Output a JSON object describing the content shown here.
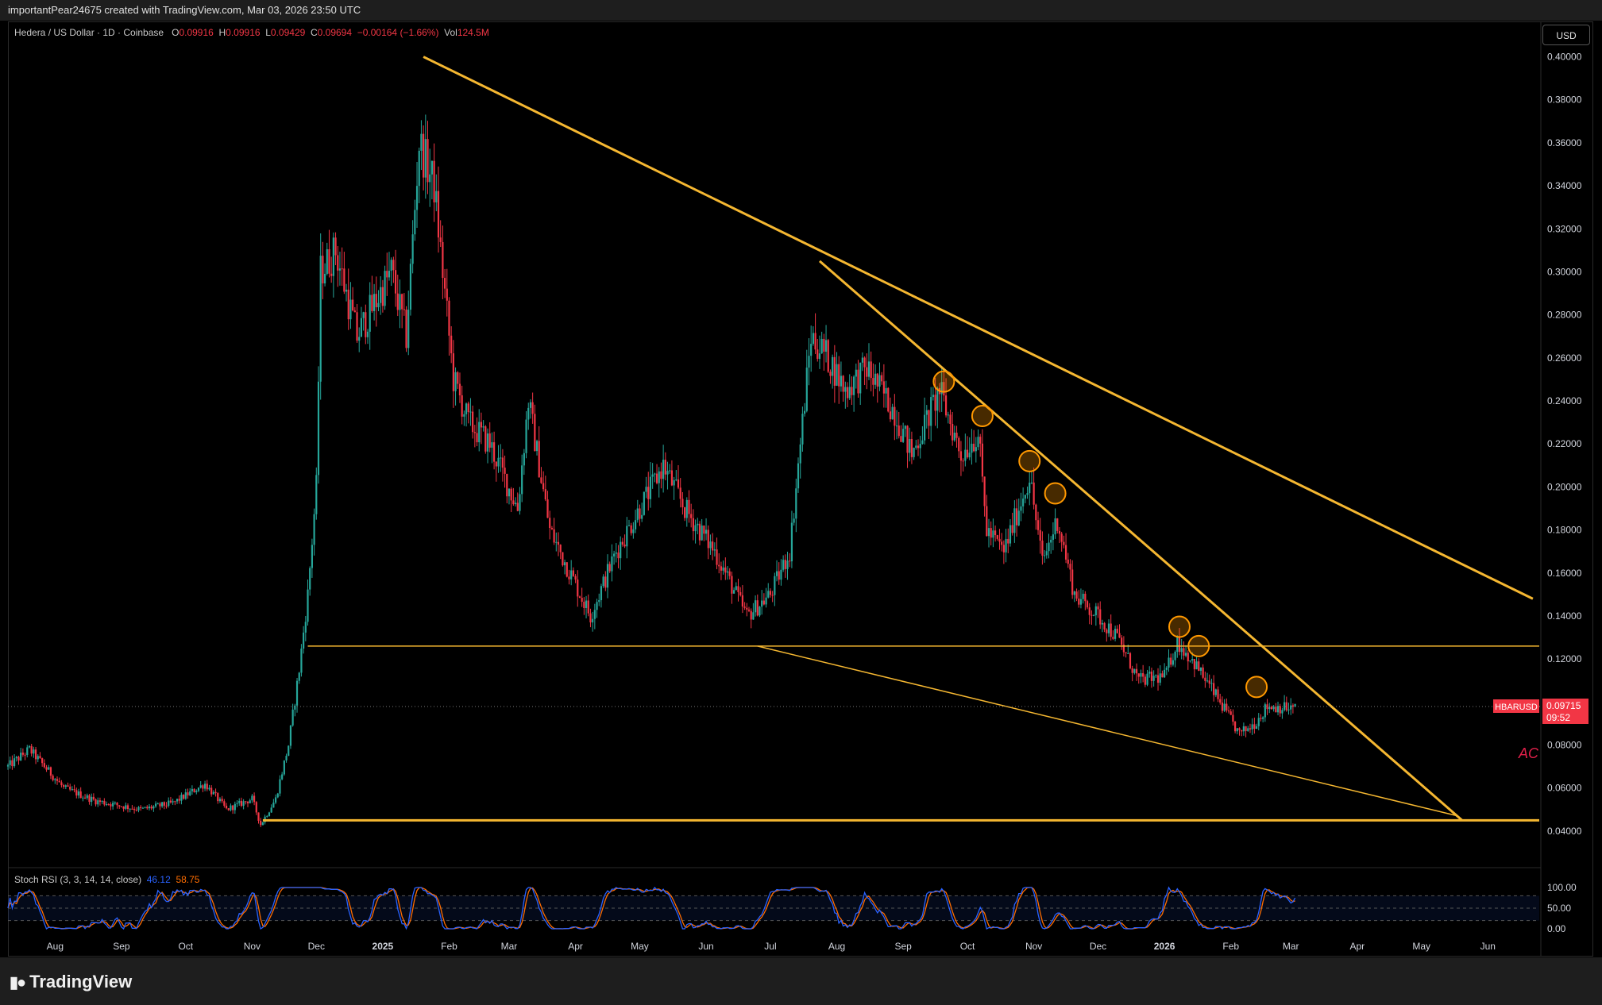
{
  "header": {
    "credit": "importantPear24675 created with TradingView.com, Mar 03, 2026 23:50 UTC"
  },
  "symbol": {
    "name": "Hedera / US Dollar · 1D · Coinbase",
    "open_label": "O",
    "open": "0.09916",
    "high_label": "H",
    "high": "0.09916",
    "low_label": "L",
    "low": "0.09429",
    "close_label": "C",
    "close": "0.09694",
    "change": "−0.00164 (−1.66%)",
    "vol_label": "Vol",
    "vol": "124.5M"
  },
  "currency_button": "USD",
  "price_tag": {
    "symbol": "HBARUSD",
    "price": "0.09715",
    "countdown": "09:52"
  },
  "watermark": "AC",
  "indicator": {
    "name": "Stoch RSI (3, 3, 14, 14, close)",
    "k": "46.12",
    "d": "58.75"
  },
  "footer": {
    "brand": "TradingView"
  },
  "colors": {
    "up": "#26a69a",
    "down": "#f23645",
    "trendline": "#f5b731",
    "stoch_k": "#2962ff",
    "stoch_d": "#ff6d00",
    "highlight": "#ff9800"
  },
  "chart_data": {
    "type": "candlestick",
    "y_ticks": [
      "0.40000",
      "0.38000",
      "0.36000",
      "0.34000",
      "0.32000",
      "0.30000",
      "0.28000",
      "0.26000",
      "0.24000",
      "0.22000",
      "0.20000",
      "0.18000",
      "0.16000",
      "0.14000",
      "0.12000",
      "0.10000",
      "0.08000",
      "0.06000",
      "0.04000"
    ],
    "ylim": [
      0.037,
      0.405
    ],
    "x_ticks": [
      "Aug",
      "Sep",
      "Oct",
      "Nov",
      "Dec",
      "2025",
      "Feb",
      "Mar",
      "Apr",
      "May",
      "Jun",
      "Jul",
      "Aug",
      "Sep",
      "Oct",
      "Nov",
      "Dec",
      "2026",
      "Feb",
      "Mar",
      "Apr",
      "May",
      "Jun"
    ],
    "x_range": [
      "2024-07-10",
      "2026-06-25"
    ],
    "stoch_ticks": [
      "100.00",
      "50.00",
      "0.00"
    ],
    "price_path": [
      [
        "2024-07-10",
        0.07
      ],
      [
        "2024-07-20",
        0.078
      ],
      [
        "2024-08-05",
        0.06
      ],
      [
        "2024-08-20",
        0.054
      ],
      [
        "2024-09-10",
        0.05
      ],
      [
        "2024-09-25",
        0.053
      ],
      [
        "2024-10-10",
        0.062
      ],
      [
        "2024-10-20",
        0.05
      ],
      [
        "2024-11-01",
        0.055
      ],
      [
        "2024-11-05",
        0.043
      ],
      [
        "2024-11-12",
        0.055
      ],
      [
        "2024-11-18",
        0.08
      ],
      [
        "2024-11-23",
        0.115
      ],
      [
        "2024-11-27",
        0.15
      ],
      [
        "2024-12-01",
        0.2
      ],
      [
        "2024-12-03",
        0.3
      ],
      [
        "2024-12-10",
        0.31
      ],
      [
        "2024-12-20",
        0.27
      ],
      [
        "2025-01-05",
        0.3
      ],
      [
        "2025-01-12",
        0.27
      ],
      [
        "2025-01-18",
        0.36
      ],
      [
        "2025-01-25",
        0.34
      ],
      [
        "2025-02-03",
        0.25
      ],
      [
        "2025-02-10",
        0.23
      ],
      [
        "2025-02-20",
        0.22
      ],
      [
        "2025-03-05",
        0.19
      ],
      [
        "2025-03-10",
        0.24
      ],
      [
        "2025-03-20",
        0.18
      ],
      [
        "2025-04-08",
        0.14
      ],
      [
        "2025-04-20",
        0.17
      ],
      [
        "2025-05-12",
        0.21
      ],
      [
        "2025-05-22",
        0.19
      ],
      [
        "2025-06-05",
        0.17
      ],
      [
        "2025-06-20",
        0.14
      ],
      [
        "2025-07-01",
        0.15
      ],
      [
        "2025-07-10",
        0.17
      ],
      [
        "2025-07-20",
        0.27
      ],
      [
        "2025-07-28",
        0.26
      ],
      [
        "2025-08-05",
        0.245
      ],
      [
        "2025-08-15",
        0.255
      ],
      [
        "2025-08-28",
        0.235
      ],
      [
        "2025-09-05",
        0.215
      ],
      [
        "2025-09-18",
        0.245
      ],
      [
        "2025-09-28",
        0.215
      ],
      [
        "2025-10-06",
        0.225
      ],
      [
        "2025-10-10",
        0.18
      ],
      [
        "2025-10-18",
        0.17
      ],
      [
        "2025-10-30",
        0.205
      ],
      [
        "2025-11-05",
        0.165
      ],
      [
        "2025-11-12",
        0.185
      ],
      [
        "2025-11-20",
        0.15
      ],
      [
        "2025-12-01",
        0.14
      ],
      [
        "2025-12-10",
        0.13
      ],
      [
        "2025-12-20",
        0.11
      ],
      [
        "2026-01-01",
        0.112
      ],
      [
        "2026-01-07",
        0.128
      ],
      [
        "2026-01-15",
        0.118
      ],
      [
        "2026-01-25",
        0.103
      ],
      [
        "2026-02-05",
        0.085
      ],
      [
        "2026-02-12",
        0.09
      ],
      [
        "2026-02-18",
        0.098
      ],
      [
        "2026-03-03",
        0.097
      ]
    ],
    "trendlines": [
      {
        "from": [
          "2025-01-20",
          0.4
        ],
        "to": [
          "2026-06-22",
          0.148
        ]
      },
      {
        "from": [
          "2025-07-24",
          0.305
        ],
        "to": [
          "2026-05-20",
          0.045
        ]
      },
      {
        "from": [
          "2025-06-25",
          0.126
        ],
        "to": [
          "2026-05-18",
          0.047
        ]
      },
      {
        "from": [
          "2024-11-06",
          0.045
        ],
        "to": [
          "2026-06-25",
          0.045
        ]
      },
      {
        "from": [
          "2024-11-27",
          0.126
        ],
        "to": [
          "2026-06-25",
          0.126
        ]
      }
    ],
    "highlight_circles": [
      [
        "2025-09-20",
        0.249
      ],
      [
        "2025-10-08",
        0.233
      ],
      [
        "2025-10-30",
        0.212
      ],
      [
        "2025-11-11",
        0.197
      ],
      [
        "2026-01-08",
        0.135
      ],
      [
        "2026-01-17",
        0.126
      ],
      [
        "2026-02-13",
        0.107
      ]
    ],
    "current_price": 0.09715
  }
}
